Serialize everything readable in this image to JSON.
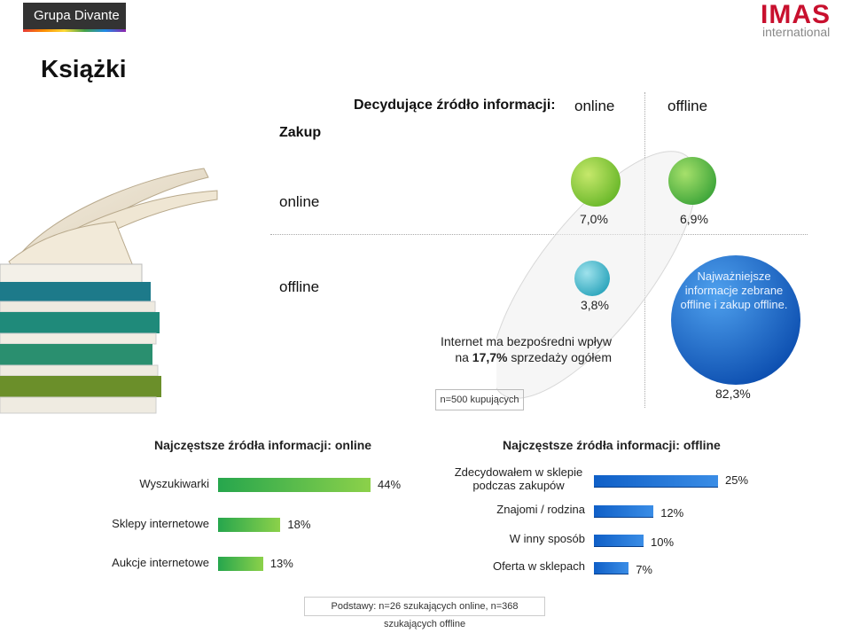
{
  "header": {
    "brand_name": "Grupa Divante",
    "partner_logo": "IMAS",
    "partner_sub": "international"
  },
  "page_title": "Książki",
  "matrix": {
    "heading": "Decydujące źródło informacji:",
    "col_online": "online",
    "col_offline": "offline",
    "row_axis_label": "Zakup",
    "row_online": "online",
    "row_offline": "offline",
    "cells": {
      "online_online": "7,0%",
      "online_offline": "6,9%",
      "offline_online": "3,8%",
      "offline_offline": "82,3%"
    },
    "note_line1": "Internet ma bezpośredni wpływ",
    "note_line2_prefix": "na ",
    "note_line2_bold": "17,7%",
    "note_line2_suffix": " sprzedaży ogółem",
    "sample": "n=500 kupujących",
    "callout": "Najważniejsze informacje zebrane offline i zakup offline.",
    "colors": {
      "green": "#7cc42c",
      "teal": "#3fb0c4",
      "blue": "#1f6fd1"
    }
  },
  "chart_data": [
    {
      "type": "bar",
      "orientation": "horizontal",
      "title": "Najczęstsze źródła informacji: online",
      "categories": [
        "Wyszukiwarki",
        "Sklepy internetowe",
        "Aukcje internetowe"
      ],
      "values": [
        44,
        18,
        13
      ],
      "value_labels": [
        "44%",
        "18%",
        "13%"
      ],
      "unit": "%",
      "xlim": [
        0,
        44
      ],
      "color": "#34b14b"
    },
    {
      "type": "bar",
      "orientation": "horizontal",
      "title": "Najczęstsze źródła informacji: offline",
      "categories": [
        "Zdecydowałem w sklepie podczas zakupów",
        "Znajomi / rodzina",
        "W inny sposób",
        "Oferta w sklepach"
      ],
      "values": [
        25,
        12,
        10,
        7
      ],
      "value_labels": [
        "25%",
        "12%",
        "10%",
        "7%"
      ],
      "unit": "%",
      "xlim": [
        0,
        25
      ],
      "color": "#1a6ed4"
    }
  ],
  "footer": "Podstawy: n=26 szukających online, n=368 szukających offline"
}
